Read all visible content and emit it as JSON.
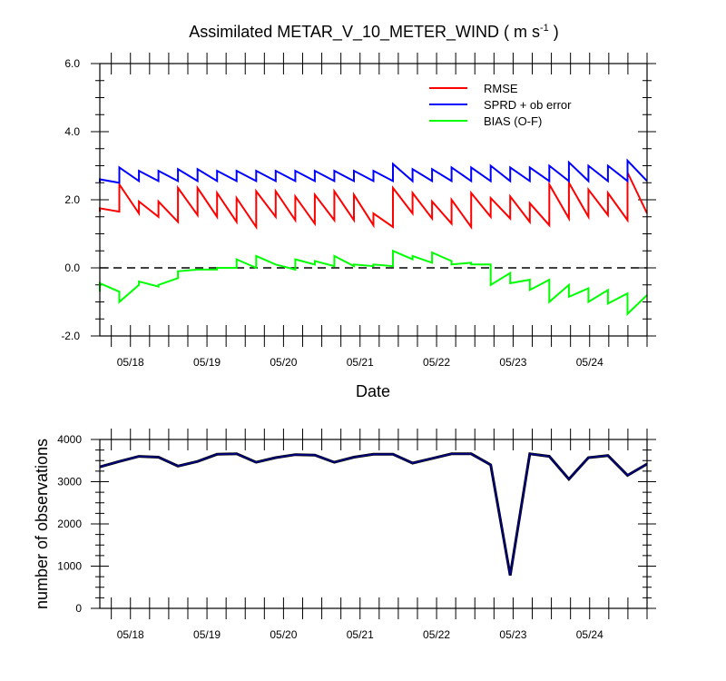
{
  "chart_data": [
    {
      "type": "line",
      "title": "Assimilated METAR_V_10_METER_WIND ( m s",
      "title_sup": "-1",
      "title_end": " )",
      "xlabel": "Date",
      "ylabel": "",
      "x_range": [
        17.6,
        24.75
      ],
      "ylim": [
        -2.0,
        6.0
      ],
      "y_ticks": [
        -2.0,
        0.0,
        2.0,
        4.0,
        6.0
      ],
      "y_tick_labels": [
        "-2.0",
        "0.0",
        "2.0",
        "4.0",
        "6.0"
      ],
      "x_ticks": [
        18,
        19,
        20,
        21,
        22,
        23,
        24
      ],
      "x_tick_labels": [
        "05/18",
        "05/19",
        "05/20",
        "05/21",
        "05/22",
        "05/23",
        "05/24"
      ],
      "zero_line": true,
      "legend": {
        "position": "top-right"
      },
      "series": [
        {
          "name": "RMSE",
          "color": "#ff0000",
          "analysis": [
            1.65,
            1.6,
            1.5,
            1.35,
            1.55,
            1.5,
            1.35,
            1.2,
            1.5,
            1.4,
            1.3,
            1.4,
            1.4,
            1.25,
            1.2,
            1.6,
            1.45,
            1.3,
            1.2,
            1.5,
            1.45,
            1.35,
            1.25,
            1.45,
            1.5,
            1.55,
            1.4,
            1.6
          ],
          "forecast": [
            1.75,
            2.45,
            1.95,
            1.95,
            2.35,
            2.35,
            2.2,
            2.05,
            2.25,
            2.25,
            2.1,
            2.15,
            2.25,
            2.15,
            1.6,
            2.35,
            2.2,
            1.95,
            2.0,
            2.2,
            2.05,
            2.1,
            1.9,
            2.45,
            2.5,
            2.3,
            2.2,
            2.8
          ]
        },
        {
          "name": "SPRD + ob error",
          "color": "#0000ff",
          "analysis": [
            2.5,
            2.55,
            2.55,
            2.55,
            2.55,
            2.55,
            2.55,
            2.55,
            2.55,
            2.55,
            2.55,
            2.55,
            2.55,
            2.55,
            2.55,
            2.55,
            2.55,
            2.55,
            2.55,
            2.55,
            2.55,
            2.55,
            2.55,
            2.55,
            2.55,
            2.55,
            2.55,
            2.55
          ],
          "forecast": [
            2.6,
            2.95,
            2.85,
            2.85,
            2.9,
            2.9,
            2.85,
            2.85,
            2.85,
            2.85,
            2.85,
            2.85,
            2.85,
            2.85,
            2.85,
            3.05,
            2.9,
            2.9,
            2.95,
            2.95,
            3.0,
            2.95,
            2.95,
            3.0,
            3.1,
            3.0,
            3.0,
            3.15
          ]
        },
        {
          "name": "BIAS (O-F)",
          "color": "#00ff00",
          "analysis": [
            -0.7,
            -0.5,
            -0.55,
            -0.3,
            -0.05,
            -0.05,
            0.0,
            0.0,
            0.1,
            -0.05,
            0.1,
            0.05,
            0.05,
            0.05,
            0.05,
            0.25,
            0.15,
            0.2,
            0.15,
            0.1,
            -0.15,
            -0.35,
            -0.35,
            -0.5,
            -0.6,
            -0.65,
            -0.75,
            -0.8
          ],
          "forecast": [
            -0.45,
            -1.0,
            -0.4,
            -0.5,
            -0.1,
            -0.05,
            0.0,
            0.25,
            0.35,
            0.1,
            0.25,
            0.2,
            0.35,
            0.1,
            0.1,
            0.5,
            0.35,
            0.45,
            0.1,
            0.1,
            -0.5,
            -0.45,
            -0.65,
            -1.0,
            -0.85,
            -1.0,
            -1.05,
            -1.35
          ]
        }
      ]
    },
    {
      "type": "line",
      "title": "",
      "xlabel": "",
      "ylabel": "number of observations",
      "x_range": [
        17.6,
        24.75
      ],
      "ylim": [
        0,
        4000
      ],
      "y_ticks": [
        0,
        1000,
        2000,
        3000,
        4000
      ],
      "y_tick_labels": [
        "0",
        "1000",
        "2000",
        "3000",
        "4000"
      ],
      "x_ticks": [
        18,
        19,
        20,
        21,
        22,
        23,
        24
      ],
      "x_tick_labels": [
        "05/18",
        "05/19",
        "05/20",
        "05/21",
        "05/22",
        "05/23",
        "05/24"
      ],
      "series": [
        {
          "name": "number of observations",
          "color": "#00008b",
          "values": [
            3350,
            3480,
            3600,
            3580,
            3370,
            3480,
            3650,
            3660,
            3460,
            3570,
            3640,
            3630,
            3460,
            3580,
            3650,
            3650,
            3440,
            3550,
            3660,
            3660,
            3400,
            780,
            3660,
            3600,
            3060,
            3570,
            3620,
            3150,
            3420
          ]
        }
      ]
    }
  ]
}
